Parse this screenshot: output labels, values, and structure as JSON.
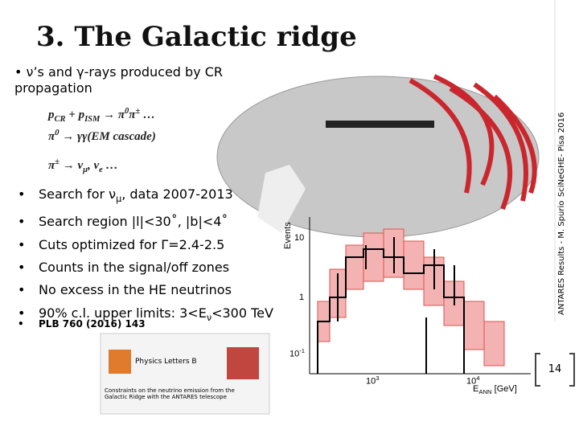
{
  "header": {
    "title": "3. The Galactic ridge"
  },
  "intro": [
    {
      "t": "ν’s and γ-rays produced by CR"
    },
    {
      "br": ""
    },
    {
      "t": "propagation"
    }
  ],
  "equations": [
    [
      {
        "t": "p"
      },
      {
        "sub": "CR"
      },
      {
        "t": " + p"
      },
      {
        "sub": "ISM"
      },
      {
        "t": " → π"
      },
      {
        "sup": "0"
      },
      {
        "t": "π"
      },
      {
        "sup": "±"
      },
      {
        "t": " …"
      }
    ],
    [
      {
        "t": "π"
      },
      {
        "sup": "0"
      },
      {
        "t": " → γγ(EM cascade)"
      }
    ],
    [
      {
        "t": "π"
      },
      {
        "sup": "±"
      },
      {
        "t": " → ν"
      },
      {
        "sub": "μ"
      },
      {
        "t": ", ν"
      },
      {
        "sub": "e"
      },
      {
        "t": " …"
      }
    ]
  ],
  "bullets": [
    [
      {
        "t": "Search for ν"
      },
      {
        "sub": "μ"
      },
      {
        "t": ", data 2007-2013"
      }
    ],
    [
      {
        "t": "Search region  |l|<30˚, |b|<4˚"
      }
    ],
    [
      {
        "t": "Cuts optimized for Γ=2.4-2.5"
      }
    ],
    [
      {
        "t": "Counts in the signal/off zones"
      }
    ],
    [
      {
        "t": "No excess in the HE neutrinos"
      }
    ],
    [
      {
        "t": "90% c.l. upper limits: 3<E"
      },
      {
        "sub": "ν"
      },
      {
        "t": "<300 TeV"
      }
    ]
  ],
  "reference": "PLB 760 (2016) 143",
  "paper": {
    "journal": "Physics Letters B",
    "title": "Constraints on the neutrino emission from the Galactic Ridge with the ANTARES telescope"
  },
  "plot": {
    "y_label": "Events",
    "y_ticks": [
      [
        {
          "t": "10"
        }
      ],
      [
        {
          "t": "1"
        }
      ],
      [
        {
          "t": "10"
        },
        {
          "sup": "-1"
        }
      ]
    ],
    "x_ticks": [
      [
        {
          "t": "10"
        },
        {
          "sup": "3"
        }
      ],
      [
        {
          "t": "10"
        },
        {
          "sup": "4"
        }
      ]
    ],
    "x_label": [
      {
        "t": "E"
      },
      {
        "sub": "ANN"
      },
      {
        "t": " [GeV]"
      }
    ]
  },
  "sidebar": {
    "left": "ANTARES Results - M. Spurio",
    "right": "SciNeGHE- Pisa 2016"
  },
  "page_number": "14"
}
